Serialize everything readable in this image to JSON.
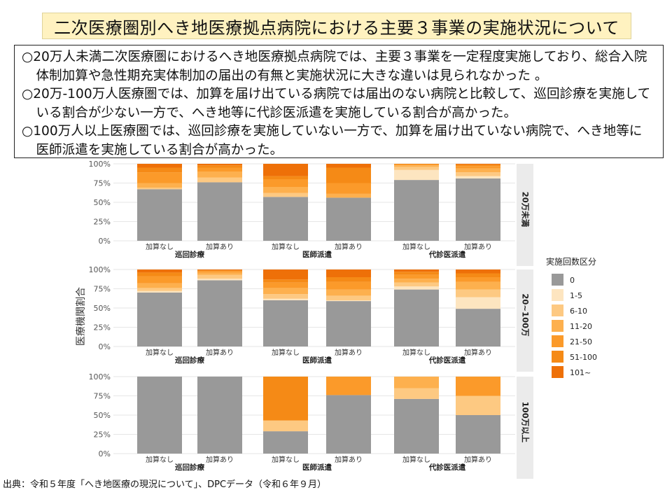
{
  "title": "二次医療圏別へき地医療拠点病院における主要３事業の実施状況について",
  "summary": [
    "○20万人未満二次医療圏におけるへき地医療拠点病院では、主要３事業を一定程度実施しており、総合入院体制加算や急性期充実体制加の届出の有無と実施状況に大きな違いは見られなかった 。",
    "○20万-100万人医療圏では、加算を届け出ている病院では届出のない病院と比較して、巡回診療を実施している割合が少ない一方で、へき地等に代診医派遣を実施している割合が高かった。",
    "○100万人以上医療圏では、巡回診療を実施していない一方で、加算を届け出ていない病院で、へき地等に医師派遣を実施している割合が高かった。"
  ],
  "source": "出典：令和５年度「へき地医療の現況について」、DPCデータ（令和６年９月）",
  "chart_data": {
    "type": "bar",
    "stacked": true,
    "ylabel": "医療機関割合",
    "ylim": [
      0,
      100
    ],
    "yticks": [
      "0%",
      "25%",
      "50%",
      "75%",
      "100%"
    ],
    "categories": [
      "加算なし",
      "加算あり",
      "加算なし",
      "加算あり",
      "加算なし",
      "加算あり"
    ],
    "groups": [
      "巡回診療",
      "医師派遣",
      "代診医派遣"
    ],
    "legend": {
      "title": "実施回数区分",
      "position": "right",
      "items": [
        "0",
        "1-5",
        "6-10",
        "11-20",
        "21-50",
        "51-100",
        "101~"
      ],
      "colors": [
        "#999999",
        "#fde5c0",
        "#fdc982",
        "#fdb04e",
        "#fb9a2a",
        "#f58a16",
        "#ee7008"
      ]
    },
    "panels": [
      {
        "label": "20万未満",
        "values": [
          [
            67,
            0,
            2,
            6,
            14,
            6,
            5
          ],
          [
            76,
            0,
            6,
            8,
            5,
            3,
            2
          ],
          [
            57,
            0,
            5,
            8,
            10,
            4,
            16
          ],
          [
            56,
            0,
            0,
            5,
            14,
            20,
            5
          ],
          [
            79,
            13,
            4,
            2,
            1,
            1,
            0
          ],
          [
            81,
            3,
            5,
            5,
            3,
            2,
            1
          ]
        ]
      },
      {
        "label": "20~100万",
        "values": [
          [
            70,
            2,
            4,
            6,
            9,
            5,
            4
          ],
          [
            86,
            2,
            5,
            3,
            2,
            1,
            1
          ],
          [
            60,
            2,
            6,
            8,
            7,
            4,
            13
          ],
          [
            59,
            1,
            6,
            8,
            10,
            6,
            10
          ],
          [
            74,
            4,
            5,
            5,
            5,
            4,
            3
          ],
          [
            49,
            15,
            10,
            10,
            6,
            5,
            5
          ]
        ]
      },
      {
        "label": "100万以上",
        "values": [
          [
            100,
            0,
            0,
            0,
            0,
            0,
            0
          ],
          [
            100,
            0,
            0,
            0,
            0,
            0,
            0
          ],
          [
            29,
            0,
            14,
            0,
            0,
            57,
            0
          ],
          [
            76,
            0,
            0,
            0,
            24,
            0,
            0
          ],
          [
            71,
            0,
            14,
            15,
            0,
            0,
            0
          ],
          [
            50,
            0,
            25,
            0,
            25,
            0,
            0
          ]
        ]
      }
    ]
  }
}
